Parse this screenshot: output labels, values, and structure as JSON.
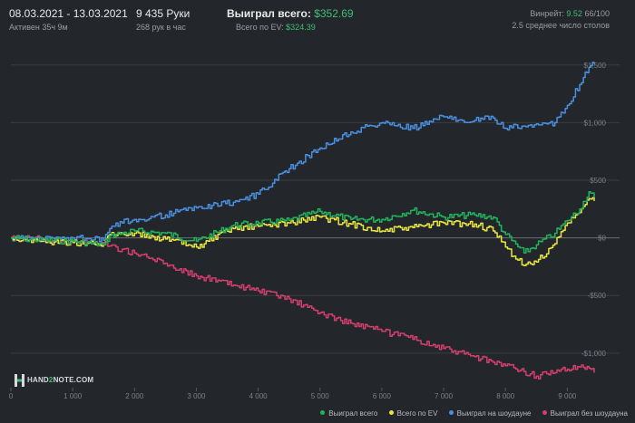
{
  "header": {
    "date_range": "08.03.2021 - 13.03.2021",
    "active": "Активен 35ч 9м",
    "hands": "9 435 Руки",
    "hands_per_hour": "268 рук в час",
    "won_label": "Выиграл всего:",
    "won_value": "$352.69",
    "ev_label": "Всего по EV:",
    "ev_value": "$324.39",
    "winrate_label": "Винрейт:",
    "winrate_value": "9.52",
    "winrate_rest": "66/100",
    "tables": "2.5 среднее число столов"
  },
  "logo": {
    "text_a": "HAND",
    "text_b": "2",
    "text_c": "NOTE.COM"
  },
  "colors": {
    "won": "#22b35c",
    "ev": "#e8e640",
    "sd": "#4a90e0",
    "nsd": "#d43f6e",
    "grid": "#3a3e44",
    "zero": "#6b6f75",
    "accent": "#3fbf73"
  },
  "chart_data": {
    "type": "line",
    "title": "",
    "xlabel": "",
    "ylabel": "",
    "xlim": [
      0,
      9435
    ],
    "ylim": [
      -1300,
      1750
    ],
    "x_ticks": [
      0,
      1000,
      2000,
      3000,
      4000,
      5000,
      6000,
      7000,
      8000,
      9000
    ],
    "x_tick_labels": [
      "0",
      "1 000",
      "2 000",
      "3 000",
      "4 000",
      "5 000",
      "6 000",
      "7 000",
      "8 000",
      "9 000"
    ],
    "y_ticks": [
      1500,
      1000,
      500,
      0,
      -500,
      -1000
    ],
    "y_tick_labels": [
      "$1,500",
      "$1,000",
      "$500",
      "$0",
      "-$500",
      "-$1,000"
    ],
    "grid": true,
    "legend_position": "bottom-right",
    "x": [
      0,
      500,
      1000,
      1500,
      1600,
      1800,
      2000,
      2500,
      3000,
      3600,
      4000,
      4500,
      5000,
      5500,
      6000,
      6500,
      7000,
      7500,
      7800,
      8000,
      8300,
      8500,
      8800,
      9000,
      9200,
      9350,
      9435
    ],
    "series": [
      {
        "name": "Выиграл всего",
        "values": [
          0,
          -20,
          -30,
          -60,
          20,
          40,
          60,
          40,
          -30,
          110,
          130,
          150,
          230,
          160,
          160,
          240,
          180,
          200,
          180,
          30,
          -130,
          -60,
          40,
          150,
          250,
          400,
          350
        ]
      },
      {
        "name": "Всего по EV",
        "values": [
          0,
          -30,
          -40,
          -60,
          30,
          40,
          40,
          -10,
          -80,
          80,
          100,
          130,
          180,
          120,
          60,
          90,
          130,
          120,
          60,
          -80,
          -240,
          -210,
          -50,
          130,
          220,
          340,
          320
        ]
      },
      {
        "name": "Выиграл на шоудауне",
        "values": [
          0,
          -10,
          0,
          -20,
          80,
          130,
          160,
          200,
          260,
          310,
          380,
          600,
          780,
          920,
          1000,
          950,
          1050,
          1020,
          1040,
          950,
          970,
          990,
          1000,
          1150,
          1330,
          1480,
          1510
        ]
      },
      {
        "name": "Выиграл без шоудауна",
        "values": [
          0,
          -10,
          -30,
          -40,
          -70,
          -100,
          -130,
          -220,
          -330,
          -410,
          -460,
          -530,
          -650,
          -740,
          -810,
          -880,
          -960,
          -1030,
          -1080,
          -1110,
          -1160,
          -1200,
          -1170,
          -1140,
          -1120,
          -1130,
          -1170
        ]
      }
    ]
  }
}
